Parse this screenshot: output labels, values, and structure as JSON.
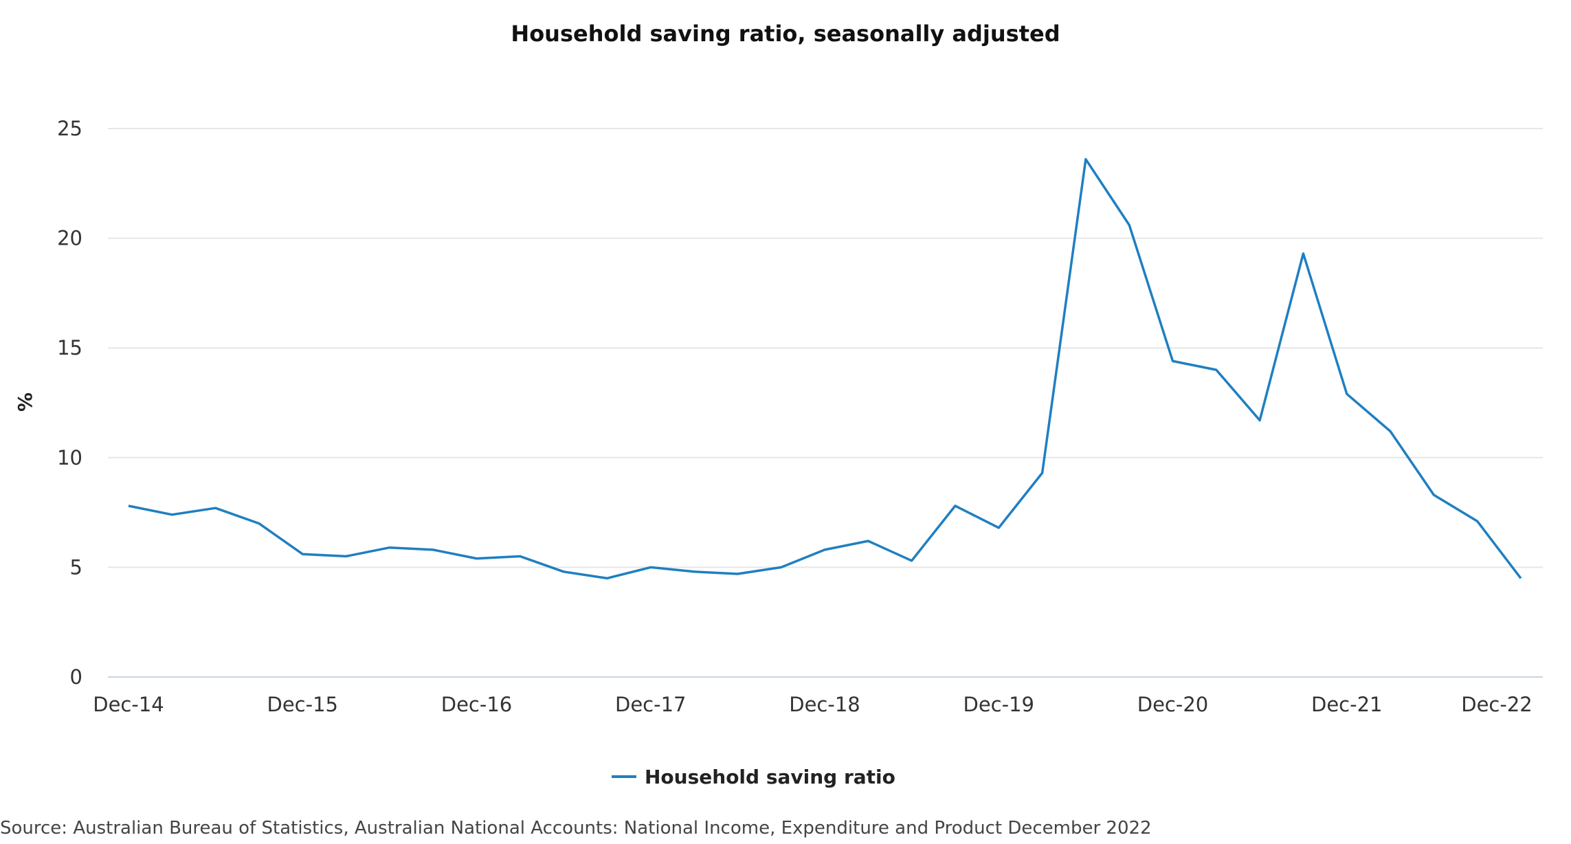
{
  "chart_data": {
    "type": "line",
    "title": "Household saving ratio, seasonally adjusted",
    "ylabel": "%",
    "xlabel": "",
    "ylim": [
      0,
      25
    ],
    "yticks": [
      "0",
      "5",
      "10",
      "15",
      "20",
      "25"
    ],
    "ytick_values": [
      0,
      5,
      10,
      15,
      20,
      25
    ],
    "xticks": [
      {
        "label": "Dec-14",
        "index": 0
      },
      {
        "label": "Dec-15",
        "index": 4
      },
      {
        "label": "Dec-16",
        "index": 8
      },
      {
        "label": "Dec-17",
        "index": 12
      },
      {
        "label": "Dec-18",
        "index": 16
      },
      {
        "label": "Dec-19",
        "index": 20
      },
      {
        "label": "Dec-20",
        "index": 24
      },
      {
        "label": "Dec-21",
        "index": 28
      },
      {
        "label": "Dec-22",
        "index": 32
      }
    ],
    "grid": true,
    "legend_position": "bottom-center",
    "series": [
      {
        "name": "Household saving ratio",
        "color": "#1f7fc1",
        "values": [
          7.8,
          7.4,
          7.7,
          7.0,
          5.6,
          5.5,
          5.9,
          5.8,
          5.4,
          5.5,
          4.8,
          4.5,
          5.0,
          4.8,
          4.7,
          5.0,
          5.8,
          6.2,
          5.3,
          7.8,
          6.8,
          9.3,
          23.6,
          20.6,
          14.4,
          14.0,
          11.7,
          19.3,
          12.9,
          11.2,
          8.3,
          7.1,
          4.5
        ]
      }
    ],
    "source": "Source: Australian Bureau of Statistics, Australian National Accounts: National Income, Expenditure and Product December 2022"
  }
}
